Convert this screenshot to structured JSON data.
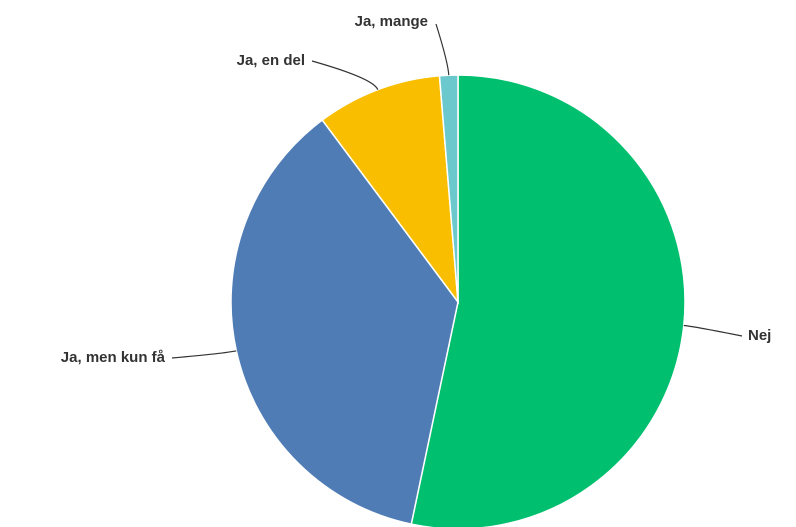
{
  "chart_data": {
    "type": "pie",
    "categories": [
      "Nej",
      "Ja, men kun få",
      "Ja, en del",
      "Ja, mange"
    ],
    "values": [
      53.3,
      36.5,
      8.9,
      1.3
    ],
    "colors": [
      "#00bf6f",
      "#507cb6",
      "#f9be00",
      "#6bc8cd"
    ]
  }
}
